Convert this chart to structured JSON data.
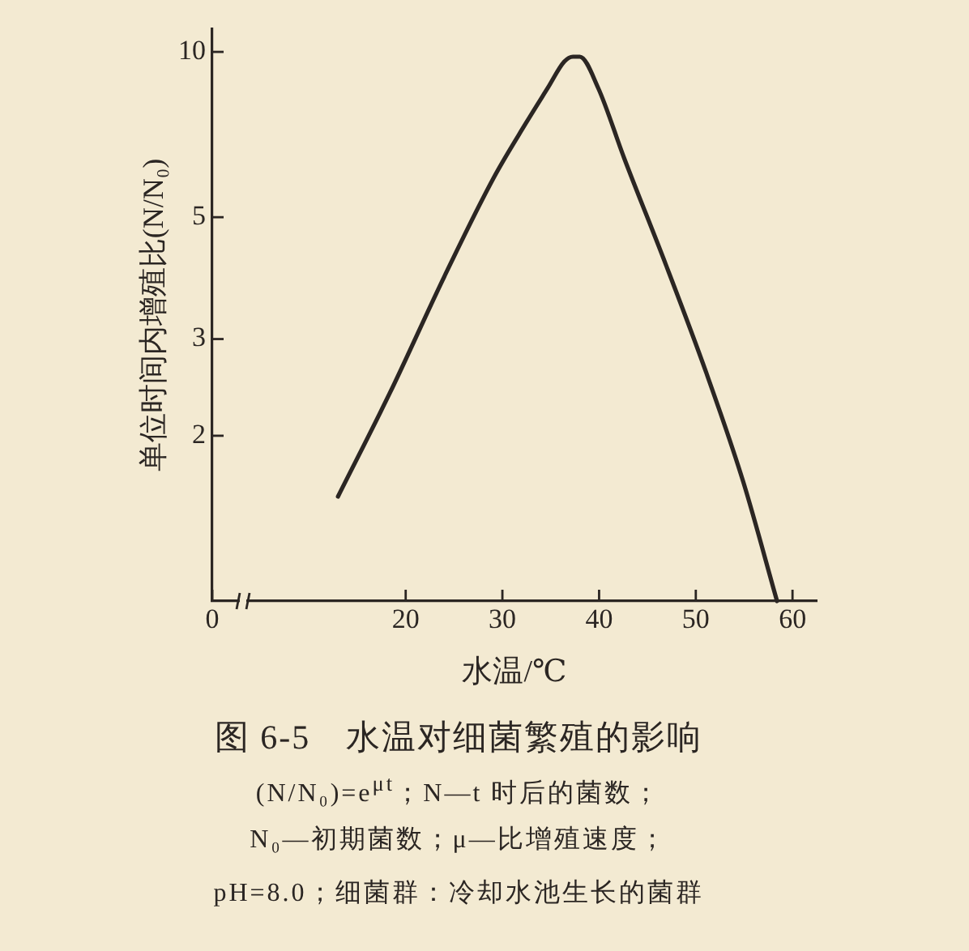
{
  "chart_data": {
    "type": "line",
    "title": "图 6-5　水温对细菌繁殖的影响",
    "xlabel": "水温/℃",
    "ylabel": "单位时间内增殖比(N/N₀)",
    "annotations": [
      "(N/N₀)=e$^{μt}$；N—t 时后的菌数；",
      "N₀—初期菌数；μ—比增殖速度；",
      "pH=8.0；细菌群：冷却水池生长的菌群"
    ],
    "x": [
      13,
      18.4,
      24,
      29.1,
      32.4,
      34.7,
      36.4,
      37.3,
      38,
      39.9,
      42.6,
      46.9,
      51.1,
      54.9,
      58.4
    ],
    "series": [
      {
        "color": "#2b2623",
        "values": [
          1.55,
          2.4,
          3.9,
          5.9,
          7.4,
          8.6,
          9.6,
          9.8,
          9.8,
          8.6,
          6.4,
          4.1,
          2.6,
          1.65,
          1
        ]
      }
    ],
    "xlim": [
      0,
      62.5
    ],
    "xticks": [
      0,
      20,
      30,
      40,
      50,
      60
    ],
    "ylim": [
      1,
      11
    ],
    "yticks": [
      2,
      3,
      5,
      10
    ],
    "log": "y",
    "marker": "none",
    "line_style": "solid"
  }
}
